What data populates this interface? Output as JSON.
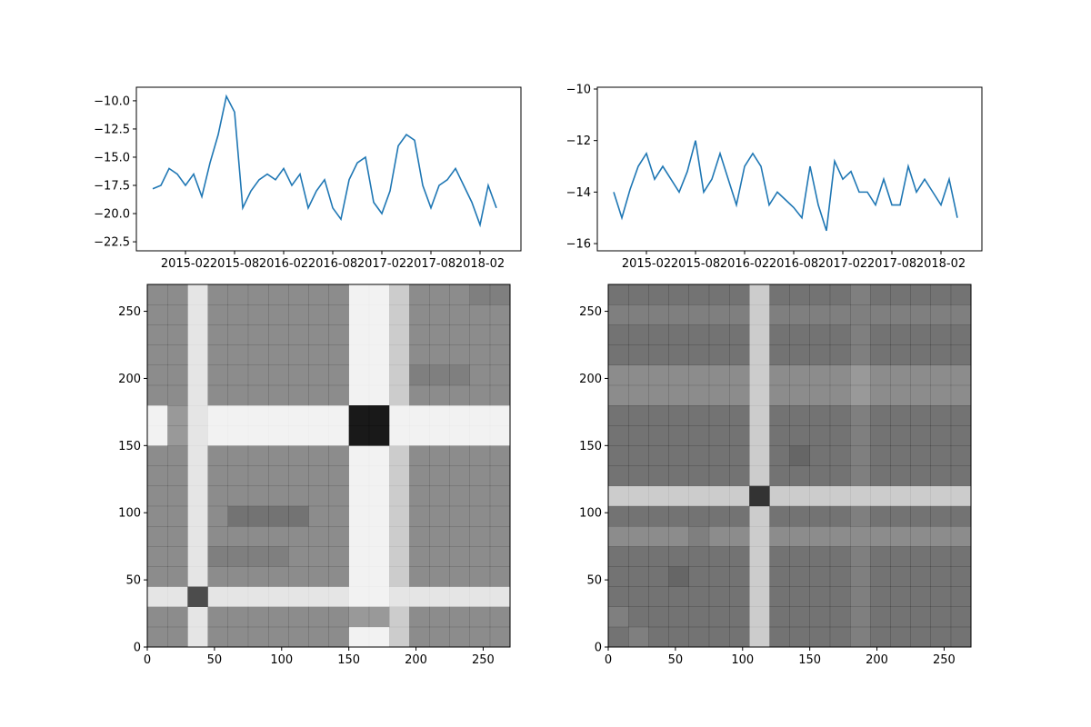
{
  "chart_data": [
    {
      "type": "line",
      "x": [
        "2014-10",
        "2014-11",
        "2014-12",
        "2015-01",
        "2015-02",
        "2015-03",
        "2015-04",
        "2015-05",
        "2015-06",
        "2015-07",
        "2015-08",
        "2015-09",
        "2015-10",
        "2015-11",
        "2015-12",
        "2016-01",
        "2016-02",
        "2016-03",
        "2016-04",
        "2016-05",
        "2016-06",
        "2016-07",
        "2016-08",
        "2016-09",
        "2016-10",
        "2016-11",
        "2016-12",
        "2017-01",
        "2017-02",
        "2017-03",
        "2017-04",
        "2017-05",
        "2017-06",
        "2017-07",
        "2017-08",
        "2017-09",
        "2017-10",
        "2017-11",
        "2017-12",
        "2018-01",
        "2018-02",
        "2018-03",
        "2018-04"
      ],
      "values": [
        -17.8,
        -17.5,
        -16.0,
        -16.5,
        -17.5,
        -16.5,
        -18.5,
        -15.5,
        -13.0,
        -9.6,
        -11.0,
        -19.5,
        -18.0,
        -17.0,
        -16.5,
        -17.0,
        -16.0,
        -17.5,
        -16.5,
        -19.5,
        -18.0,
        -17.0,
        -19.5,
        -20.5,
        -17.0,
        -15.5,
        -15.0,
        -19.0,
        -20.0,
        -18.0,
        -14.0,
        -13.0,
        -13.5,
        -17.5,
        -19.5,
        -17.5,
        -17.0,
        -16.0,
        -17.5,
        -19.0,
        -21.0,
        -17.5,
        -19.5
      ],
      "color": "#1f77b4",
      "xlim": [
        "2014-08",
        "2018-07"
      ],
      "xticks": [
        "2015-02",
        "2015-08",
        "2016-02",
        "2016-08",
        "2017-02",
        "2017-08",
        "2018-02"
      ],
      "ylim": [
        -23.3,
        -8.8
      ],
      "yticks": [
        {
          "value": -10,
          "label": "−10.0"
        },
        {
          "value": -12.5,
          "label": "−12.5"
        },
        {
          "value": -15,
          "label": "−15.0"
        },
        {
          "value": -17.5,
          "label": "−17.5"
        },
        {
          "value": -20,
          "label": "−20.0"
        },
        {
          "value": -22.5,
          "label": "−22.5"
        }
      ]
    },
    {
      "type": "line",
      "x": [
        "2014-10",
        "2014-11",
        "2014-12",
        "2015-01",
        "2015-02",
        "2015-03",
        "2015-04",
        "2015-05",
        "2015-06",
        "2015-07",
        "2015-08",
        "2015-09",
        "2015-10",
        "2015-11",
        "2015-12",
        "2016-01",
        "2016-02",
        "2016-03",
        "2016-04",
        "2016-05",
        "2016-06",
        "2016-07",
        "2016-08",
        "2016-09",
        "2016-10",
        "2016-11",
        "2016-12",
        "2017-01",
        "2017-02",
        "2017-03",
        "2017-04",
        "2017-05",
        "2017-06",
        "2017-07",
        "2017-08",
        "2017-09",
        "2017-10",
        "2017-11",
        "2017-12",
        "2018-01",
        "2018-02",
        "2018-03",
        "2018-04"
      ],
      "values": [
        -14.0,
        -15.0,
        -13.9,
        -13.0,
        -12.5,
        -13.5,
        -13.0,
        -13.5,
        -14.0,
        -13.2,
        -12.0,
        -14.0,
        -13.5,
        -12.5,
        -13.5,
        -14.5,
        -13.0,
        -12.5,
        -13.0,
        -14.5,
        -14.0,
        -14.3,
        -14.6,
        -15.0,
        -13.0,
        -14.5,
        -15.5,
        -12.8,
        -13.5,
        -13.2,
        -14.0,
        -14.0,
        -14.5,
        -13.5,
        -14.5,
        -14.5,
        -13.0,
        -14.0,
        -13.5,
        -14.0,
        -14.5,
        -13.5,
        -15.0
      ],
      "color": "#1f77b4",
      "xlim": [
        "2014-08",
        "2018-07"
      ],
      "xticks": [
        "2015-02",
        "2015-08",
        "2016-02",
        "2016-08",
        "2017-02",
        "2017-08",
        "2018-02"
      ],
      "ylim": [
        -16.28,
        -9.93
      ],
      "yticks": [
        {
          "value": -10,
          "label": "−10"
        },
        {
          "value": -12,
          "label": "−12"
        },
        {
          "value": -14,
          "label": "−14"
        },
        {
          "value": -16,
          "label": "−16"
        }
      ]
    },
    {
      "type": "heatmap",
      "color": "#000000",
      "xlim": [
        0,
        270
      ],
      "ylim": [
        0,
        270
      ],
      "xticks": [
        0,
        50,
        100,
        150,
        200,
        250
      ],
      "yticks": [
        0,
        50,
        100,
        150,
        200,
        250
      ],
      "matrix": [
        [
          0.45,
          0.45,
          0.1,
          0.45,
          0.45,
          0.45,
          0.45,
          0.45,
          0.45,
          0.45,
          0.05,
          0.05,
          0.2,
          0.45,
          0.45,
          0.45,
          0.45,
          0.45
        ],
        [
          0.45,
          0.45,
          0.1,
          0.45,
          0.45,
          0.45,
          0.45,
          0.45,
          0.45,
          0.45,
          0.4,
          0.4,
          0.2,
          0.45,
          0.45,
          0.45,
          0.45,
          0.45
        ],
        [
          0.1,
          0.1,
          0.7,
          0.1,
          0.1,
          0.1,
          0.1,
          0.1,
          0.1,
          0.1,
          0.05,
          0.05,
          0.1,
          0.1,
          0.1,
          0.1,
          0.1,
          0.1
        ],
        [
          0.45,
          0.45,
          0.1,
          0.45,
          0.45,
          0.45,
          0.45,
          0.45,
          0.45,
          0.45,
          0.05,
          0.05,
          0.2,
          0.45,
          0.45,
          0.45,
          0.45,
          0.45
        ],
        [
          0.45,
          0.45,
          0.1,
          0.5,
          0.5,
          0.5,
          0.5,
          0.45,
          0.45,
          0.45,
          0.05,
          0.05,
          0.2,
          0.45,
          0.45,
          0.45,
          0.45,
          0.45
        ],
        [
          0.45,
          0.45,
          0.1,
          0.45,
          0.45,
          0.45,
          0.45,
          0.45,
          0.45,
          0.45,
          0.05,
          0.05,
          0.2,
          0.45,
          0.45,
          0.45,
          0.45,
          0.45
        ],
        [
          0.45,
          0.45,
          0.1,
          0.45,
          0.55,
          0.55,
          0.55,
          0.55,
          0.45,
          0.45,
          0.05,
          0.05,
          0.2,
          0.45,
          0.45,
          0.45,
          0.45,
          0.45
        ],
        [
          0.45,
          0.45,
          0.1,
          0.45,
          0.45,
          0.45,
          0.45,
          0.45,
          0.45,
          0.45,
          0.05,
          0.05,
          0.2,
          0.45,
          0.45,
          0.45,
          0.45,
          0.45
        ],
        [
          0.45,
          0.45,
          0.1,
          0.45,
          0.45,
          0.45,
          0.45,
          0.45,
          0.45,
          0.45,
          0.05,
          0.05,
          0.2,
          0.45,
          0.45,
          0.45,
          0.45,
          0.45
        ],
        [
          0.45,
          0.45,
          0.1,
          0.45,
          0.45,
          0.45,
          0.45,
          0.45,
          0.45,
          0.45,
          0.05,
          0.05,
          0.2,
          0.45,
          0.45,
          0.45,
          0.45,
          0.45
        ],
        [
          0.05,
          0.4,
          0.1,
          0.05,
          0.05,
          0.05,
          0.05,
          0.05,
          0.05,
          0.05,
          0.9,
          0.9,
          0.05,
          0.05,
          0.05,
          0.05,
          0.05,
          0.05
        ],
        [
          0.05,
          0.4,
          0.1,
          0.05,
          0.05,
          0.05,
          0.05,
          0.05,
          0.05,
          0.05,
          0.9,
          0.9,
          0.05,
          0.05,
          0.05,
          0.05,
          0.05,
          0.05
        ],
        [
          0.45,
          0.45,
          0.1,
          0.45,
          0.45,
          0.45,
          0.45,
          0.45,
          0.45,
          0.45,
          0.05,
          0.05,
          0.2,
          0.45,
          0.45,
          0.45,
          0.45,
          0.45
        ],
        [
          0.45,
          0.45,
          0.1,
          0.45,
          0.45,
          0.45,
          0.45,
          0.45,
          0.45,
          0.45,
          0.05,
          0.05,
          0.2,
          0.5,
          0.5,
          0.5,
          0.45,
          0.45
        ],
        [
          0.45,
          0.45,
          0.1,
          0.45,
          0.45,
          0.45,
          0.45,
          0.45,
          0.45,
          0.45,
          0.05,
          0.05,
          0.2,
          0.45,
          0.45,
          0.45,
          0.45,
          0.45
        ],
        [
          0.45,
          0.45,
          0.1,
          0.45,
          0.45,
          0.45,
          0.45,
          0.45,
          0.45,
          0.45,
          0.05,
          0.05,
          0.2,
          0.45,
          0.45,
          0.45,
          0.45,
          0.45
        ],
        [
          0.45,
          0.45,
          0.1,
          0.45,
          0.45,
          0.45,
          0.45,
          0.45,
          0.45,
          0.45,
          0.05,
          0.05,
          0.2,
          0.45,
          0.45,
          0.45,
          0.45,
          0.45
        ],
        [
          0.45,
          0.45,
          0.1,
          0.45,
          0.45,
          0.45,
          0.45,
          0.45,
          0.45,
          0.45,
          0.05,
          0.05,
          0.2,
          0.45,
          0.45,
          0.45,
          0.5,
          0.5
        ]
      ]
    },
    {
      "type": "heatmap",
      "color": "#000000",
      "xlim": [
        0,
        270
      ],
      "ylim": [
        0,
        270
      ],
      "xticks": [
        0,
        50,
        100,
        150,
        200,
        250
      ],
      "yticks": [
        0,
        50,
        100,
        150,
        200,
        250
      ],
      "matrix": [
        [
          0.55,
          0.5,
          0.55,
          0.55,
          0.55,
          0.55,
          0.55,
          0.2,
          0.55,
          0.55,
          0.55,
          0.55,
          0.5,
          0.55,
          0.55,
          0.55,
          0.55,
          0.55
        ],
        [
          0.5,
          0.55,
          0.55,
          0.55,
          0.55,
          0.55,
          0.55,
          0.2,
          0.55,
          0.55,
          0.55,
          0.55,
          0.5,
          0.55,
          0.55,
          0.55,
          0.55,
          0.55
        ],
        [
          0.55,
          0.55,
          0.55,
          0.55,
          0.55,
          0.55,
          0.55,
          0.2,
          0.55,
          0.55,
          0.55,
          0.55,
          0.5,
          0.55,
          0.55,
          0.55,
          0.55,
          0.55
        ],
        [
          0.55,
          0.55,
          0.55,
          0.6,
          0.55,
          0.55,
          0.55,
          0.2,
          0.55,
          0.55,
          0.55,
          0.55,
          0.5,
          0.55,
          0.55,
          0.55,
          0.55,
          0.55
        ],
        [
          0.55,
          0.55,
          0.55,
          0.55,
          0.55,
          0.55,
          0.55,
          0.2,
          0.55,
          0.55,
          0.55,
          0.55,
          0.5,
          0.55,
          0.55,
          0.55,
          0.55,
          0.55
        ],
        [
          0.45,
          0.45,
          0.45,
          0.45,
          0.5,
          0.45,
          0.45,
          0.2,
          0.45,
          0.45,
          0.45,
          0.45,
          0.45,
          0.45,
          0.45,
          0.45,
          0.45,
          0.45
        ],
        [
          0.55,
          0.55,
          0.55,
          0.55,
          0.55,
          0.55,
          0.55,
          0.2,
          0.55,
          0.55,
          0.55,
          0.55,
          0.5,
          0.55,
          0.55,
          0.55,
          0.55,
          0.55
        ],
        [
          0.2,
          0.2,
          0.2,
          0.2,
          0.2,
          0.2,
          0.2,
          0.8,
          0.2,
          0.2,
          0.2,
          0.2,
          0.2,
          0.2,
          0.2,
          0.2,
          0.2,
          0.2
        ],
        [
          0.55,
          0.55,
          0.55,
          0.55,
          0.55,
          0.55,
          0.55,
          0.2,
          0.55,
          0.55,
          0.55,
          0.55,
          0.5,
          0.55,
          0.55,
          0.55,
          0.55,
          0.55
        ],
        [
          0.55,
          0.55,
          0.55,
          0.55,
          0.55,
          0.55,
          0.55,
          0.2,
          0.55,
          0.6,
          0.55,
          0.55,
          0.5,
          0.55,
          0.55,
          0.55,
          0.55,
          0.55
        ],
        [
          0.55,
          0.55,
          0.55,
          0.55,
          0.55,
          0.55,
          0.55,
          0.2,
          0.55,
          0.55,
          0.55,
          0.55,
          0.5,
          0.55,
          0.55,
          0.55,
          0.55,
          0.55
        ],
        [
          0.55,
          0.55,
          0.55,
          0.55,
          0.55,
          0.55,
          0.55,
          0.2,
          0.55,
          0.55,
          0.55,
          0.55,
          0.5,
          0.55,
          0.55,
          0.55,
          0.55,
          0.55
        ],
        [
          0.45,
          0.45,
          0.45,
          0.45,
          0.45,
          0.45,
          0.45,
          0.2,
          0.45,
          0.45,
          0.45,
          0.45,
          0.4,
          0.45,
          0.45,
          0.45,
          0.45,
          0.45
        ],
        [
          0.45,
          0.45,
          0.45,
          0.45,
          0.45,
          0.45,
          0.45,
          0.2,
          0.45,
          0.45,
          0.45,
          0.45,
          0.4,
          0.45,
          0.45,
          0.45,
          0.45,
          0.45
        ],
        [
          0.55,
          0.55,
          0.55,
          0.55,
          0.55,
          0.55,
          0.55,
          0.2,
          0.55,
          0.55,
          0.55,
          0.55,
          0.5,
          0.55,
          0.55,
          0.55,
          0.55,
          0.55
        ],
        [
          0.55,
          0.55,
          0.55,
          0.55,
          0.55,
          0.55,
          0.55,
          0.2,
          0.55,
          0.55,
          0.55,
          0.55,
          0.5,
          0.55,
          0.55,
          0.55,
          0.55,
          0.55
        ],
        [
          0.5,
          0.5,
          0.5,
          0.5,
          0.5,
          0.5,
          0.5,
          0.2,
          0.5,
          0.5,
          0.5,
          0.5,
          0.5,
          0.5,
          0.5,
          0.5,
          0.5,
          0.5
        ],
        [
          0.55,
          0.55,
          0.55,
          0.55,
          0.55,
          0.55,
          0.55,
          0.2,
          0.55,
          0.55,
          0.55,
          0.55,
          0.5,
          0.55,
          0.55,
          0.55,
          0.55,
          0.55
        ]
      ]
    }
  ]
}
